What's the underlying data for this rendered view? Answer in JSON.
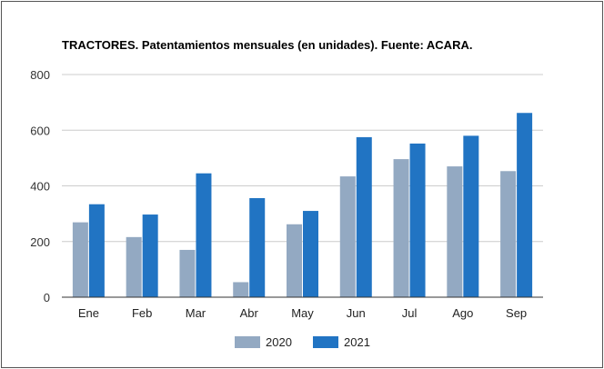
{
  "chart_data": {
    "type": "bar",
    "title": "TRACTORES. Patentamientos mensuales (en unidades). Fuente: ACARA.",
    "xlabel": "",
    "ylabel": "",
    "categories": [
      "Ene",
      "Feb",
      "Mar",
      "Abr",
      "May",
      "Jun",
      "Jul",
      "Ago",
      "Sep"
    ],
    "series": [
      {
        "name": "2020",
        "color": "#93a9c2",
        "values": [
          269,
          216,
          170,
          54,
          262,
          434,
          496,
          470,
          453
        ]
      },
      {
        "name": "2021",
        "color": "#2174c3",
        "values": [
          334,
          297,
          445,
          356,
          310,
          575,
          552,
          580,
          662
        ]
      }
    ],
    "ylim": [
      0,
      800
    ],
    "yticks": [
      0,
      200,
      400,
      600,
      800
    ],
    "grid": true,
    "legend_position": "bottom"
  }
}
